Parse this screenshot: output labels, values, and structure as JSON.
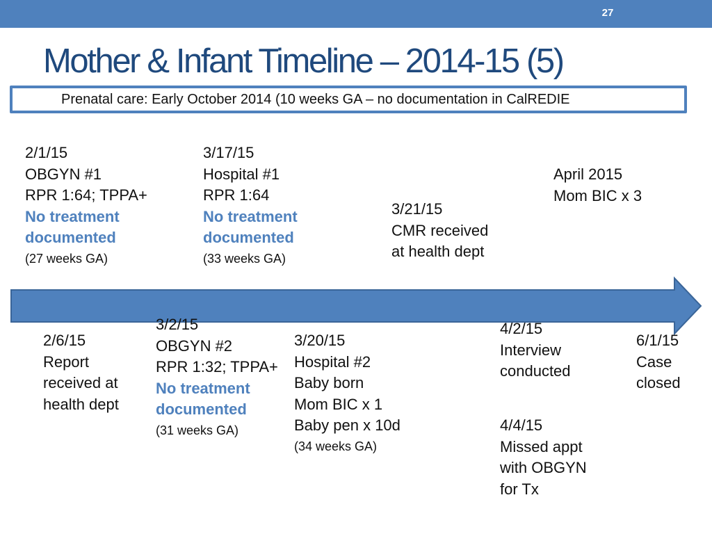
{
  "slide_number": "27",
  "title": "Mother & Infant Timeline – 2014-15 (5)",
  "prenatal_note": "Prenatal care: Early October 2014 (10 weeks GA – no documentation in CalREDIE",
  "colors": {
    "accent": "#4f81bd",
    "title": "#1f497d",
    "text": "#111111"
  },
  "events_above": [
    {
      "date": "2/1/15",
      "lines": [
        {
          "text": "OBGYN #1",
          "style": "normal"
        },
        {
          "text": "RPR 1:64; TPPA+",
          "style": "normal"
        },
        {
          "text": "No treatment",
          "style": "emph"
        },
        {
          "text": "documented",
          "style": "emph"
        },
        {
          "text": "(27 weeks GA)",
          "style": "small"
        }
      ]
    },
    {
      "date": "3/17/15",
      "lines": [
        {
          "text": "Hospital #1",
          "style": "normal"
        },
        {
          "text": "RPR 1:64",
          "style": "normal"
        },
        {
          "text": "No treatment",
          "style": "emph"
        },
        {
          "text": "documented",
          "style": "emph"
        },
        {
          "text": "(33 weeks GA)",
          "style": "small"
        }
      ]
    },
    {
      "date": "3/21/15",
      "lines": [
        {
          "text": "CMR received",
          "style": "normal"
        },
        {
          "text": "at health dept",
          "style": "normal"
        }
      ]
    },
    {
      "date": "April 2015",
      "lines": [
        {
          "text": "Mom BIC x 3",
          "style": "normal"
        }
      ]
    }
  ],
  "events_below": [
    {
      "date": "2/6/15",
      "lines": [
        {
          "text": "Report",
          "style": "normal"
        },
        {
          "text": "received at",
          "style": "normal"
        },
        {
          "text": "health dept",
          "style": "normal"
        }
      ]
    },
    {
      "date": "3/2/15",
      "lines": [
        {
          "text": "OBGYN #2",
          "style": "normal"
        },
        {
          "text": "RPR 1:32; TPPA+",
          "style": "normal"
        },
        {
          "text": "No treatment",
          "style": "emph"
        },
        {
          "text": "documented",
          "style": "emph"
        },
        {
          "text": "(31 weeks GA)",
          "style": "small"
        }
      ]
    },
    {
      "date": "3/20/15",
      "lines": [
        {
          "text": "Hospital #2",
          "style": "normal"
        },
        {
          "text": "Baby born",
          "style": "normal"
        },
        {
          "text": "Mom BIC x 1",
          "style": "normal"
        },
        {
          "text": "Baby pen x 10d",
          "style": "normal"
        },
        {
          "text": "(34 weeks GA)",
          "style": "small"
        }
      ]
    },
    {
      "date": "4/2/15",
      "lines": [
        {
          "text": "Interview",
          "style": "normal"
        },
        {
          "text": "conducted",
          "style": "normal"
        }
      ]
    },
    {
      "date": "4/4/15",
      "lines": [
        {
          "text": "Missed appt",
          "style": "normal"
        },
        {
          "text": "with OBGYN",
          "style": "normal"
        },
        {
          "text": "for Tx",
          "style": "normal"
        }
      ]
    },
    {
      "date": "6/1/15",
      "lines": [
        {
          "text": "Case",
          "style": "normal"
        },
        {
          "text": "closed",
          "style": "normal"
        }
      ]
    }
  ]
}
